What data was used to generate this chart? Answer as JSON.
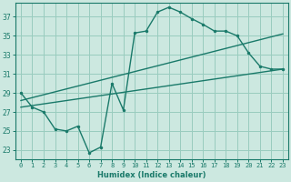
{
  "xlabel": "Humidex (Indice chaleur)",
  "ylabel": "",
  "bg_color": "#cce8e0",
  "grid_color": "#99ccbe",
  "line_color": "#1a7a6a",
  "xlim": [
    -0.5,
    23.5
  ],
  "ylim": [
    22.0,
    38.5
  ],
  "xticks": [
    0,
    1,
    2,
    3,
    4,
    5,
    6,
    7,
    8,
    9,
    10,
    11,
    12,
    13,
    14,
    15,
    16,
    17,
    18,
    19,
    20,
    21,
    22,
    23
  ],
  "yticks": [
    23,
    25,
    27,
    29,
    31,
    33,
    35,
    37
  ],
  "line1_x": [
    0,
    1,
    2,
    3,
    4,
    5,
    6,
    7,
    8,
    9,
    10,
    11,
    12,
    13,
    14,
    15,
    16,
    17,
    18,
    19,
    20,
    21,
    22,
    23
  ],
  "line1_y": [
    29.0,
    27.5,
    27.0,
    25.2,
    25.0,
    25.5,
    22.7,
    23.3,
    30.0,
    27.2,
    35.3,
    35.5,
    37.5,
    38.0,
    37.5,
    36.8,
    36.2,
    35.5,
    35.5,
    35.0,
    33.2,
    31.8,
    31.5,
    31.5
  ],
  "line2_x": [
    0,
    23
  ],
  "line2_y": [
    28.2,
    35.2
  ],
  "line3_x": [
    0,
    23
  ],
  "line3_y": [
    27.5,
    31.5
  ]
}
